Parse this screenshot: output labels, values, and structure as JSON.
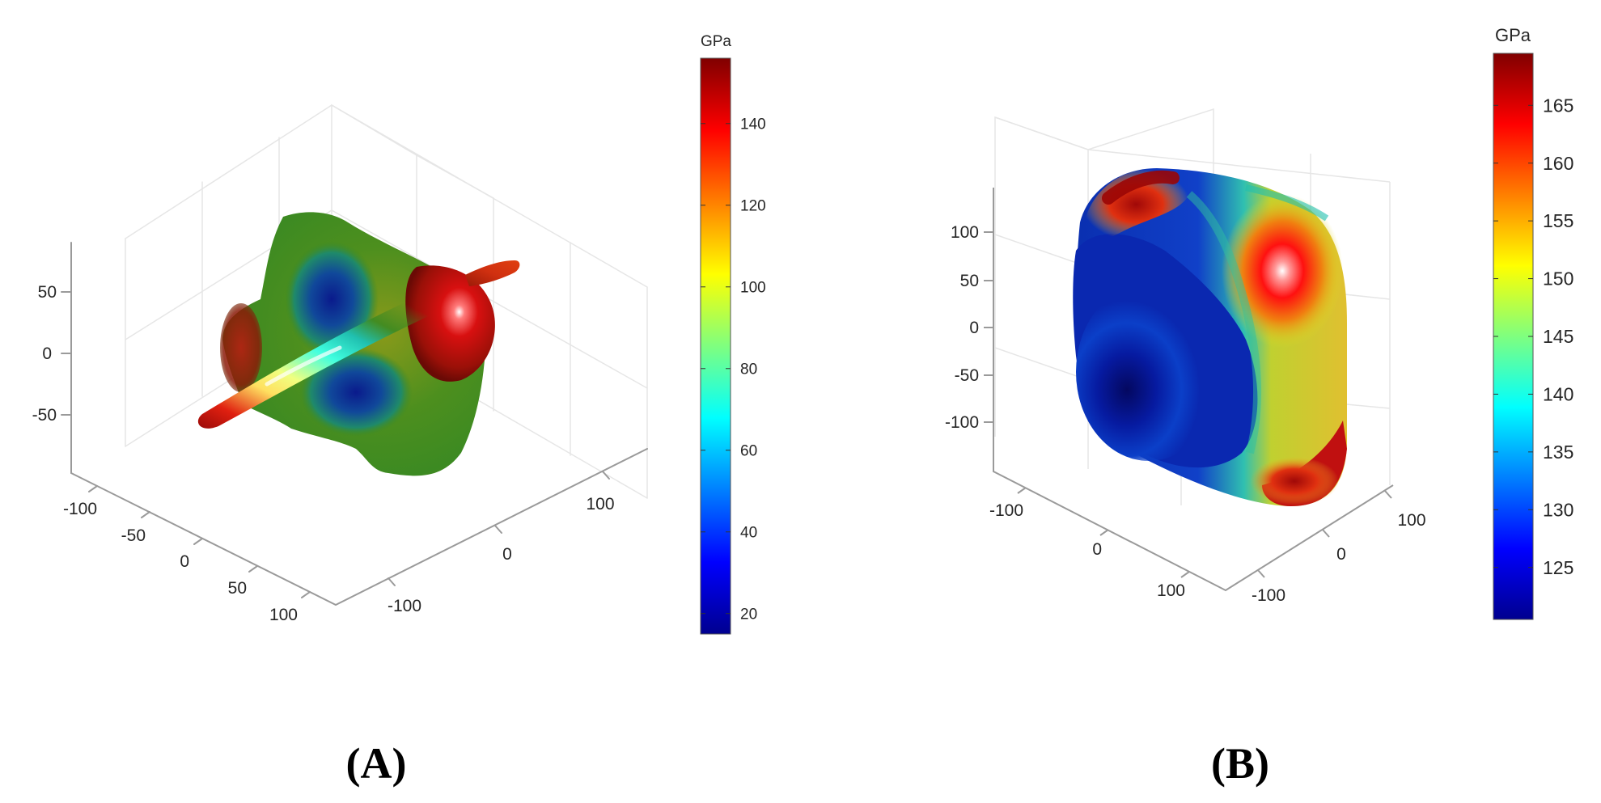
{
  "chart_data": [
    {
      "type": "3d-surface",
      "panel_label": "(A)",
      "colorbar": {
        "unit": "GPa",
        "min": 15,
        "max": 156,
        "ticks": [
          20,
          40,
          60,
          80,
          100,
          120,
          140
        ],
        "colormap": "jet"
      },
      "axes": {
        "z_ticks": [
          50,
          0,
          -50
        ],
        "left_ticks": [
          -100,
          -50,
          0,
          50,
          100
        ],
        "right_ticks": [
          -100,
          0,
          100
        ]
      },
      "grid": true
    },
    {
      "type": "3d-surface",
      "panel_label": "(B)",
      "colorbar": {
        "unit": "GPa",
        "min": 120.5,
        "max": 169.5,
        "ticks": [
          125,
          130,
          135,
          140,
          145,
          150,
          155,
          160,
          165
        ],
        "colormap": "jet"
      },
      "axes": {
        "z_ticks": [
          100,
          50,
          0,
          -50,
          -100
        ],
        "left_ticks": [
          -100,
          0,
          100
        ],
        "right_ticks": [
          -100,
          0,
          100
        ]
      },
      "grid": true
    }
  ],
  "colors": {
    "jet_dark_blue": "#00008f",
    "jet_blue": "#0000ff",
    "jet_cyan": "#00ffff",
    "jet_yellow": "#ffff00",
    "jet_red": "#ff0000",
    "jet_dark_red": "#800000",
    "axis": "#b0b0b0",
    "grid": "#e3e3e3"
  }
}
